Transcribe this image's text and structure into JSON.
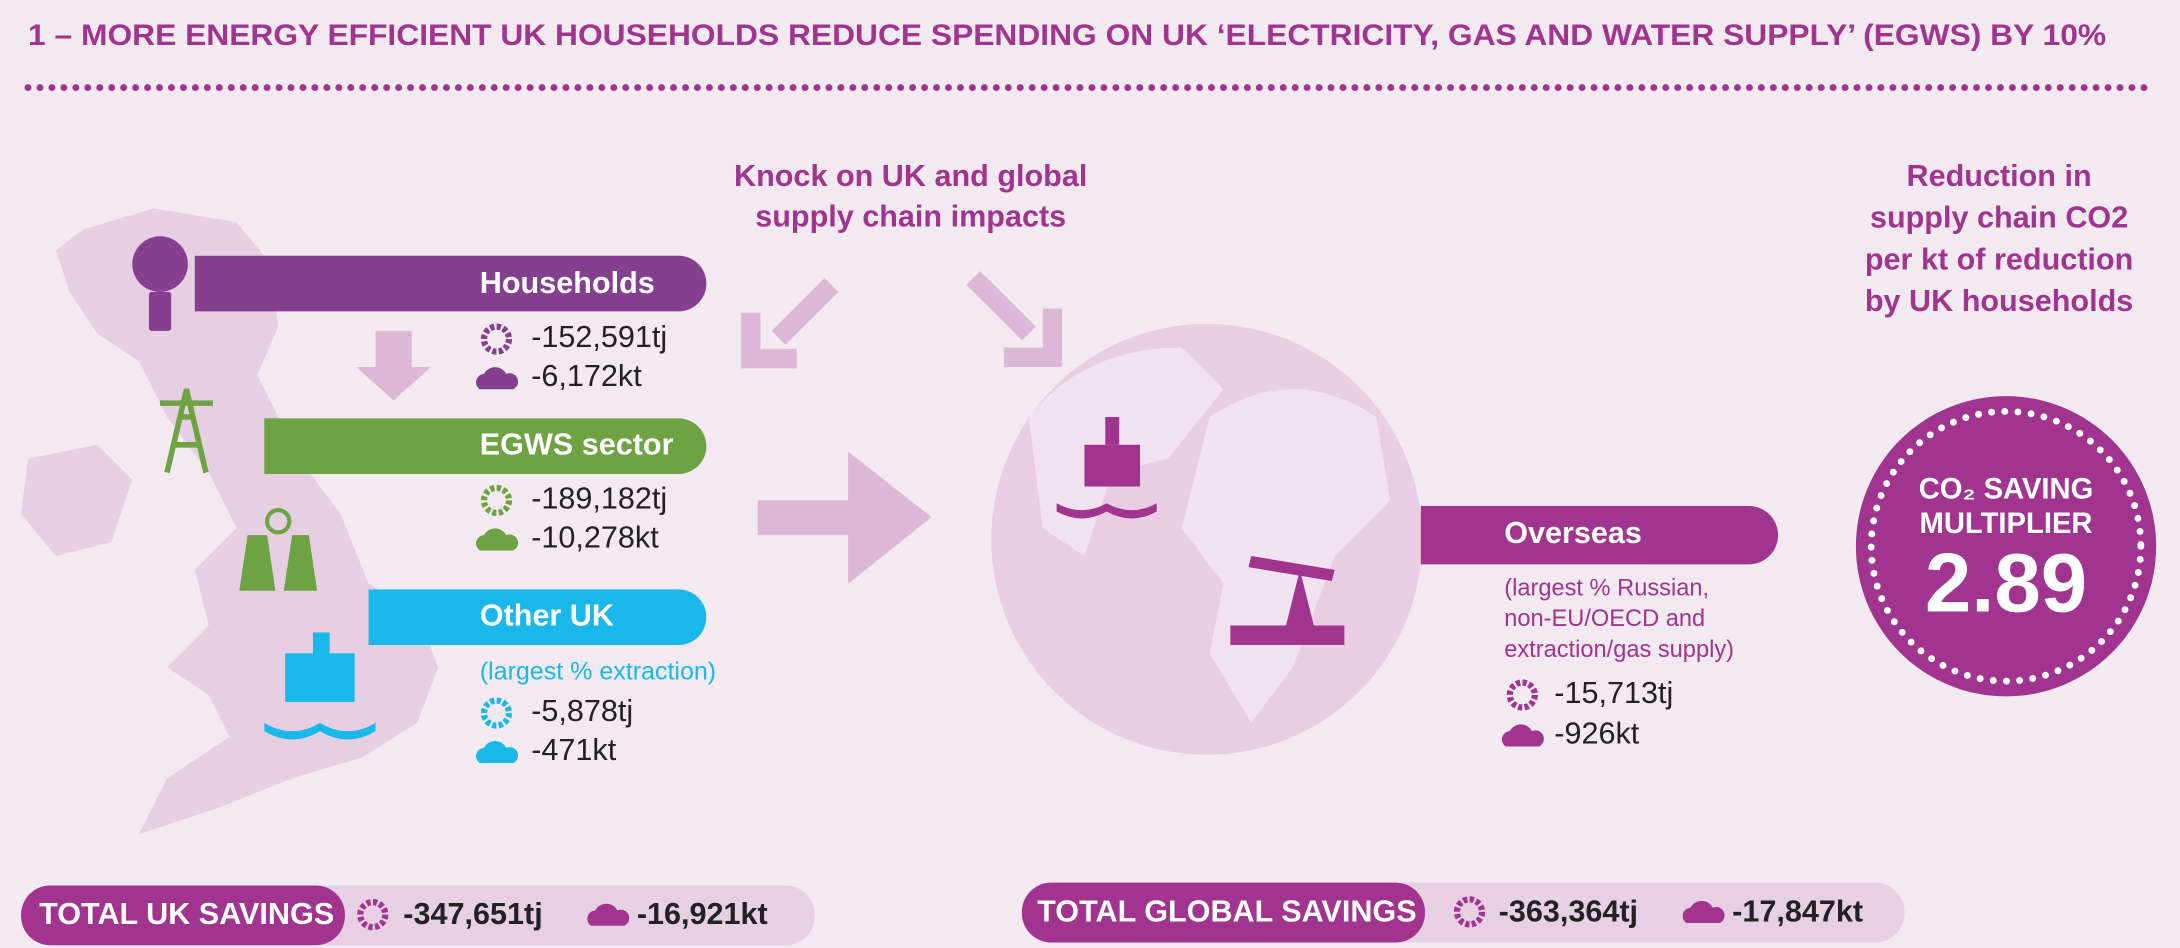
{
  "title": "1 – MORE ENERGY EFFICIENT UK HOUSEHOLDS REDUCE SPENDING ON UK ‘ELECTRICITY, GAS AND WATER SUPPLY’ (EGWS) BY 10%",
  "knock_on": [
    "Knock on UK and global",
    "supply chain impacts"
  ],
  "reduction_note": [
    "Reduction in",
    "supply chain CO2",
    "per kt of reduction",
    "by UK households"
  ],
  "sectors": [
    {
      "label": "Households",
      "energy": "-152,591tj",
      "co2": "-6,172kt"
    },
    {
      "label": "EGWS sector",
      "energy": "-189,182tj",
      "co2": "-10,278kt"
    },
    {
      "label": "Other UK",
      "note": "(largest % extraction)",
      "energy": "-5,878tj",
      "co2": "-471kt"
    }
  ],
  "overseas": {
    "label": "Overseas",
    "note": [
      "(largest % Russian,",
      "non-EU/OECD and",
      "extraction/gas supply)"
    ],
    "energy": "-15,713tj",
    "co2": "-926kt"
  },
  "multiplier": {
    "label": [
      "CO₂ SAVING",
      "MULTIPLIER"
    ],
    "value": "2.89"
  },
  "totals": [
    {
      "label": "TOTAL UK SAVINGS",
      "energy": "-347,651tj",
      "co2": "-16,921kt"
    },
    {
      "label": "TOTAL GLOBAL SAVINGS",
      "energy": "-363,364tj",
      "co2": "-17,847kt"
    }
  ]
}
